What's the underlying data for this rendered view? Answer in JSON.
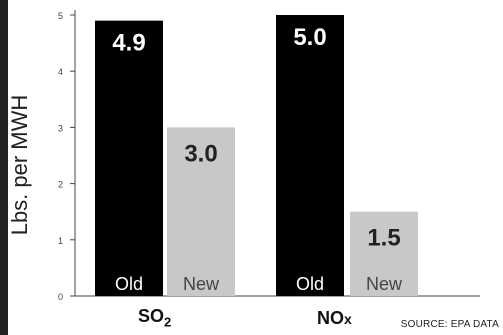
{
  "chart_data": {
    "type": "bar",
    "ylabel": "Lbs. per MWH",
    "ylim": [
      0,
      5
    ],
    "yticks": [
      "0",
      "1",
      "2",
      "3",
      "4",
      "5"
    ],
    "categories": [
      "SO2",
      "NOx"
    ],
    "series": [
      {
        "name": "Old",
        "values": [
          4.9,
          5.0
        ],
        "color": "#000000"
      },
      {
        "name": "New",
        "values": [
          3.0,
          1.5
        ],
        "color": "#c8c8c8"
      }
    ],
    "value_labels": {
      "Old": [
        "4.9",
        "5.0"
      ],
      "New": [
        "3.0",
        "1.5"
      ]
    },
    "category_labels": [
      {
        "main": "SO",
        "sub": "2"
      },
      {
        "main": "NO",
        "sub": "x"
      }
    ],
    "source": "SOURCE: EPA DATA"
  }
}
